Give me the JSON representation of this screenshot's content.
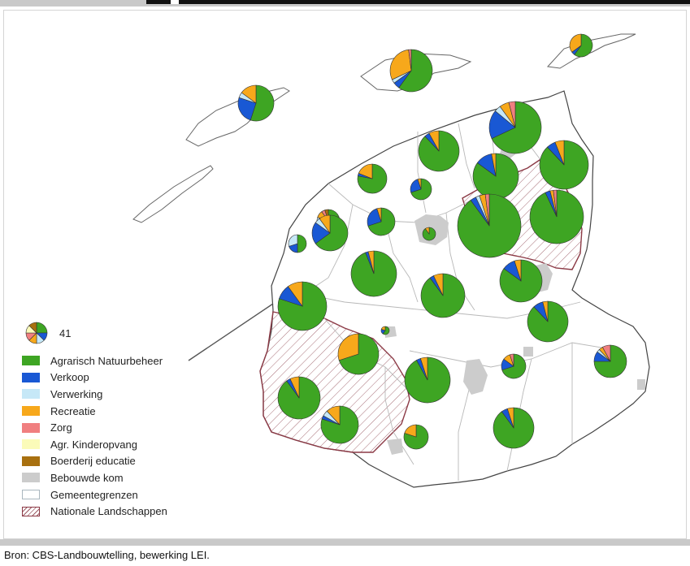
{
  "legend": {
    "size_label": "41",
    "items": [
      {
        "key": "agrarisch",
        "label": "Agrarisch Natuurbeheer",
        "color": "#3ea523",
        "kind": "fill"
      },
      {
        "key": "verkoop",
        "label": "Verkoop",
        "color": "#1958d4",
        "kind": "fill"
      },
      {
        "key": "verwerking",
        "label": "Verwerking",
        "color": "#c6e8f7",
        "kind": "fill"
      },
      {
        "key": "recreatie",
        "label": "Recreatie",
        "color": "#f7a81b",
        "kind": "fill"
      },
      {
        "key": "zorg",
        "label": "Zorg",
        "color": "#f07f80",
        "kind": "fill"
      },
      {
        "key": "kinderopvang",
        "label": "Agr. Kinderopvang",
        "color": "#fbfbb9",
        "kind": "fill"
      },
      {
        "key": "educatie",
        "label": "Boerderij educatie",
        "color": "#a8700f",
        "kind": "fill"
      },
      {
        "key": "bebouwde",
        "label": "Bebouwde kom",
        "color": "#cccccc",
        "kind": "fill"
      },
      {
        "key": "grenzen",
        "label": "Gemeentegrenzen",
        "color": "#ffffff",
        "kind": "outline"
      },
      {
        "key": "landschap",
        "label": "Nationale Landschappen",
        "color": "#9c5a63",
        "kind": "hatch"
      }
    ]
  },
  "source": "Bron: CBS-Landbouwtelling, bewerking LEI.",
  "legend_pie": [
    2,
    1,
    1,
    1,
    1,
    1,
    1
  ],
  "pies": [
    {
      "name": "vlieland",
      "size": 22,
      "shares": [
        55,
        25,
        5,
        15,
        0,
        0,
        0
      ]
    },
    {
      "name": "terschelling",
      "size": 26,
      "shares": [
        60,
        5,
        3,
        30,
        2,
        0,
        0
      ]
    },
    {
      "name": "ameland",
      "size": 14,
      "shares": [
        60,
        5,
        0,
        35,
        0,
        0,
        0
      ]
    },
    {
      "name": "dongeradeel",
      "size": 32,
      "shares": [
        68,
        18,
        4,
        6,
        4,
        0,
        0
      ]
    },
    {
      "name": "ferwerderadiel",
      "size": 25,
      "shares": [
        88,
        4,
        0,
        8,
        0,
        0,
        0
      ]
    },
    {
      "name": "het-bildt",
      "size": 18,
      "shares": [
        78,
        3,
        0,
        19,
        0,
        0,
        0
      ]
    },
    {
      "name": "dantumadiel",
      "size": 30,
      "shares": [
        88,
        6,
        0,
        6,
        0,
        0,
        0
      ]
    },
    {
      "name": "kollumerland",
      "size": 28,
      "shares": [
        85,
        12,
        0,
        3,
        0,
        0,
        0
      ]
    },
    {
      "name": "franekeradeel",
      "size": 14,
      "shares": [
        30,
        20,
        30,
        10,
        5,
        0,
        5
      ]
    },
    {
      "name": "menaldumadiel",
      "size": 13,
      "shares": [
        70,
        25,
        0,
        5,
        0,
        0,
        0
      ]
    },
    {
      "name": "achtkarspelen",
      "size": 39,
      "shares": [
        90,
        3,
        2,
        3,
        2,
        0,
        0
      ]
    },
    {
      "name": "tytsjerksteradiel",
      "size": 33,
      "shares": [
        93,
        3,
        0,
        2,
        2,
        0,
        0
      ]
    },
    {
      "name": "harlingen",
      "size": 11,
      "shares": [
        50,
        20,
        30,
        0,
        0,
        0,
        0
      ]
    },
    {
      "name": "littenseradiel",
      "size": 22,
      "shares": [
        65,
        20,
        5,
        10,
        0,
        0,
        0
      ]
    },
    {
      "name": "menaldum-zuid",
      "size": 17,
      "shares": [
        70,
        25,
        0,
        5,
        0,
        0,
        0
      ]
    },
    {
      "name": "leeuwarden",
      "size": 8,
      "shares": [
        90,
        0,
        0,
        10,
        0,
        0,
        0
      ]
    },
    {
      "name": "boarnsterhim",
      "size": 28,
      "shares": [
        94,
        2,
        0,
        4,
        0,
        0,
        0
      ]
    },
    {
      "name": "smallingerland",
      "size": 26,
      "shares": [
        85,
        10,
        0,
        5,
        0,
        0,
        0
      ]
    },
    {
      "name": "wonseradiel",
      "size": 30,
      "shares": [
        80,
        10,
        0,
        10,
        0,
        0,
        0
      ]
    },
    {
      "name": "sneek",
      "size": 27,
      "shares": [
        90,
        3,
        0,
        7,
        0,
        0,
        0
      ]
    },
    {
      "name": "wymbritseradiel",
      "size": 25,
      "shares": [
        70,
        0,
        0,
        30,
        0,
        0,
        0
      ]
    },
    {
      "name": "heerenveen",
      "size": 25,
      "shares": [
        88,
        8,
        0,
        4,
        0,
        0,
        0
      ]
    },
    {
      "name": "skarsterlan",
      "size": 28,
      "shares": [
        92,
        3,
        0,
        5,
        0,
        0,
        0
      ]
    },
    {
      "name": "opsterland",
      "size": 15,
      "shares": [
        70,
        15,
        0,
        10,
        5,
        0,
        0
      ]
    },
    {
      "name": "ooststellingwerf",
      "size": 20,
      "shares": [
        75,
        10,
        3,
        4,
        8,
        0,
        0
      ]
    },
    {
      "name": "nijefurd",
      "size": 26,
      "shares": [
        90,
        3,
        0,
        7,
        0,
        0,
        0
      ]
    },
    {
      "name": "gaasterlan-sleat",
      "size": 23,
      "shares": [
        80,
        3,
        5,
        12,
        0,
        0,
        0
      ]
    },
    {
      "name": "lemsterland",
      "size": 15,
      "shares": [
        80,
        0,
        0,
        20,
        0,
        0,
        0
      ]
    },
    {
      "name": "weststellingwerf",
      "size": 25,
      "shares": [
        90,
        5,
        0,
        5,
        0,
        0,
        0
      ]
    },
    {
      "name": "hatch-mini",
      "size": 5,
      "shares": [
        60,
        20,
        0,
        20,
        0,
        0,
        0
      ]
    }
  ]
}
